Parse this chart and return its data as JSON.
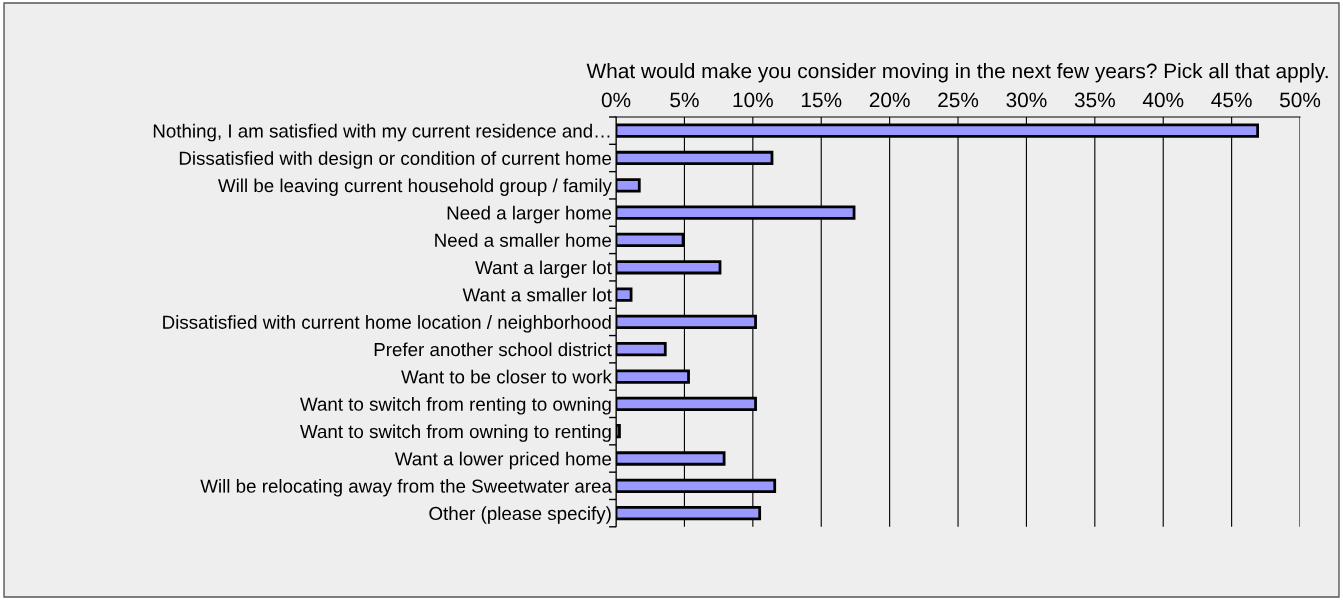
{
  "chart_data": {
    "type": "bar",
    "orientation": "horizontal",
    "title": "What would make you consider moving in the next few years? Pick all that apply.",
    "categories": [
      "Nothing, I am satisfied with my current residence and…",
      "Dissatisfied with design or condition of current home",
      "Will be leaving current household group / family",
      "Need a larger home",
      "Need a smaller home",
      "Want a larger lot",
      "Want a smaller lot",
      "Dissatisfied with current home location / neighborhood",
      "Prefer another school district",
      "Want to be closer to work",
      "Want to switch from renting to owning",
      "Want to switch from owning to renting",
      "Want a lower priced home",
      "Will be relocating away from the Sweetwater area",
      "Other (please specify)"
    ],
    "values": [
      46.9,
      11.4,
      1.7,
      17.4,
      4.9,
      7.6,
      1.1,
      10.2,
      3.6,
      5.3,
      10.2,
      0.25,
      7.9,
      11.6,
      10.5
    ],
    "color": "#9999ff",
    "xlim": [
      0,
      50
    ],
    "xticks": [
      {
        "value": 0,
        "label": "0%"
      },
      {
        "value": 5,
        "label": "5%"
      },
      {
        "value": 10,
        "label": "10%"
      },
      {
        "value": 15,
        "label": "15%"
      },
      {
        "value": 20,
        "label": "20%"
      },
      {
        "value": 25,
        "label": "25%"
      },
      {
        "value": 30,
        "label": "30%"
      },
      {
        "value": 35,
        "label": "35%"
      },
      {
        "value": 40,
        "label": "40%"
      },
      {
        "value": 45,
        "label": "45%"
      },
      {
        "value": 50,
        "label": "50%"
      }
    ],
    "grid": "x",
    "legend": false
  }
}
